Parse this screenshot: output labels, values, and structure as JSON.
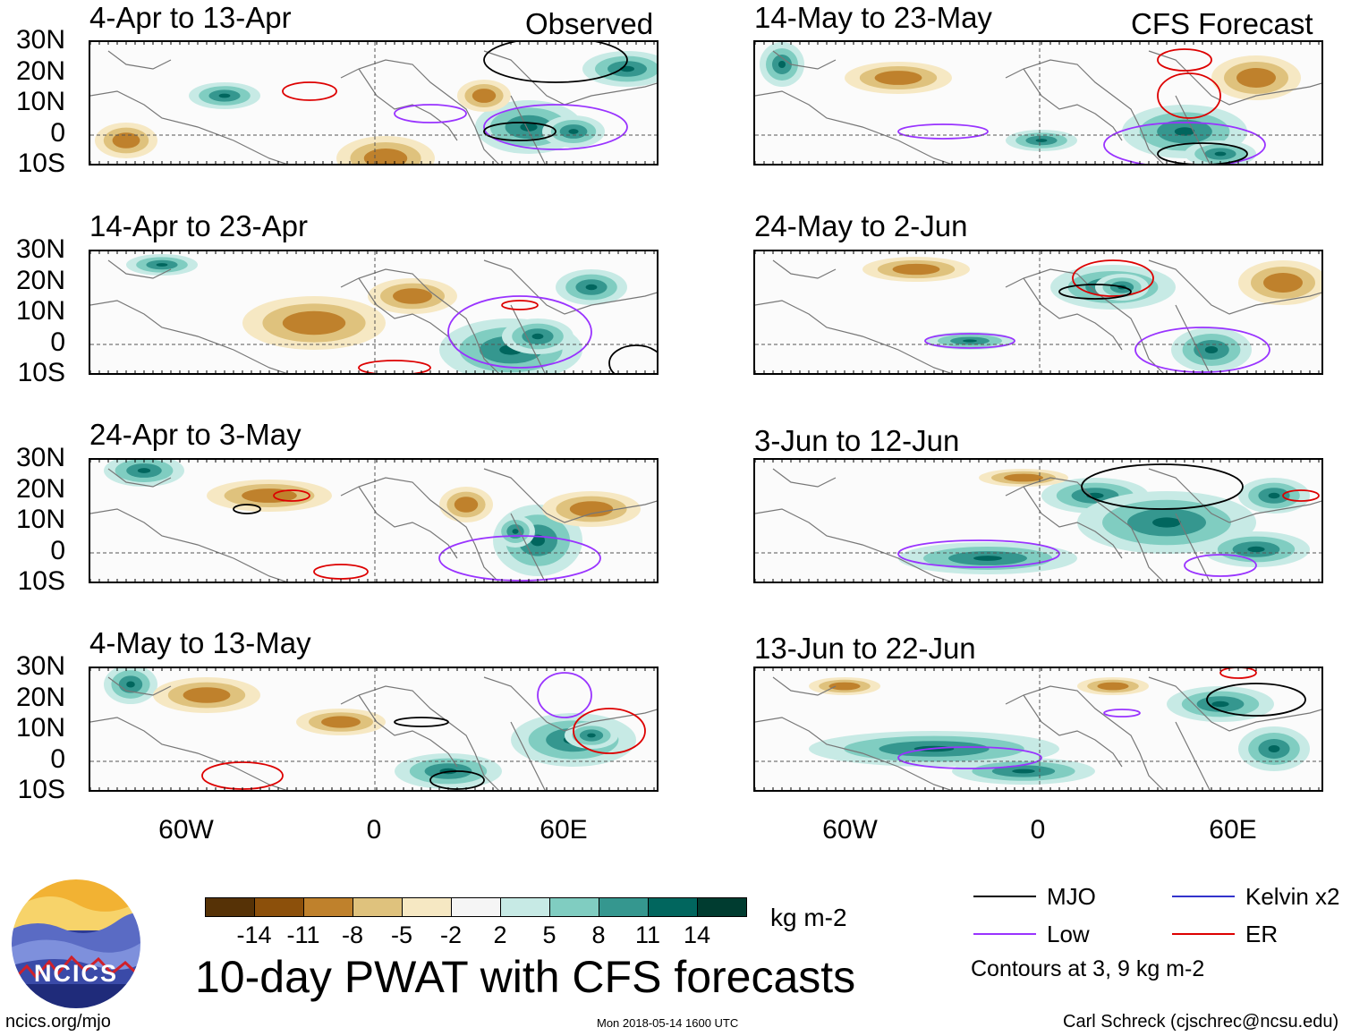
{
  "header": {
    "observed_label": "Observed",
    "forecast_label": "CFS Forecast"
  },
  "panels": [
    {
      "id": "p1",
      "title": "4-Apr to 13-Apr"
    },
    {
      "id": "p2",
      "title": "14-Apr to 23-Apr"
    },
    {
      "id": "p3",
      "title": "24-Apr to 3-May"
    },
    {
      "id": "p4",
      "title": "4-May to 13-May"
    },
    {
      "id": "p5",
      "title": "14-May to 23-May"
    },
    {
      "id": "p6",
      "title": "24-May to 2-Jun"
    },
    {
      "id": "p7",
      "title": "3-Jun to 12-Jun"
    },
    {
      "id": "p8",
      "title": "13-Jun to 22-Jun"
    }
  ],
  "axes": {
    "lat_labels": [
      "30N",
      "20N",
      "10N",
      "0",
      "10S"
    ],
    "lon_labels": [
      "60W",
      "0",
      "60E"
    ]
  },
  "colorbar": {
    "labels": [
      "-14",
      "-11",
      "-8",
      "-5",
      "-2",
      "2",
      "5",
      "8",
      "11",
      "14"
    ],
    "colors": [
      "#563206",
      "#8c500b",
      "#bf812c",
      "#dfc27d",
      "#f6e8c3",
      "#f5f5f5",
      "#c7eae5",
      "#80cdc1",
      "#35978f",
      "#01665e",
      "#003c30"
    ],
    "unit": "kg m-2"
  },
  "title": "10-day PWAT with CFS forecasts",
  "legend": {
    "items": [
      {
        "label": "MJO",
        "color": "#000000"
      },
      {
        "label": "Kelvin x2",
        "color": "#3333cc"
      },
      {
        "label": "Low",
        "color": "#9933ff"
      },
      {
        "label": "ER",
        "color": "#dd0000"
      }
    ],
    "note": "Contours at 3, 9 kg m-2"
  },
  "logo": {
    "text": "NCICS"
  },
  "footer": {
    "url": "ncics.org/mjo",
    "timestamp": "Mon 2018-05-14 1600 UTC",
    "credit": "Carl Schreck (cjschrec@ncsu.edu)"
  }
}
